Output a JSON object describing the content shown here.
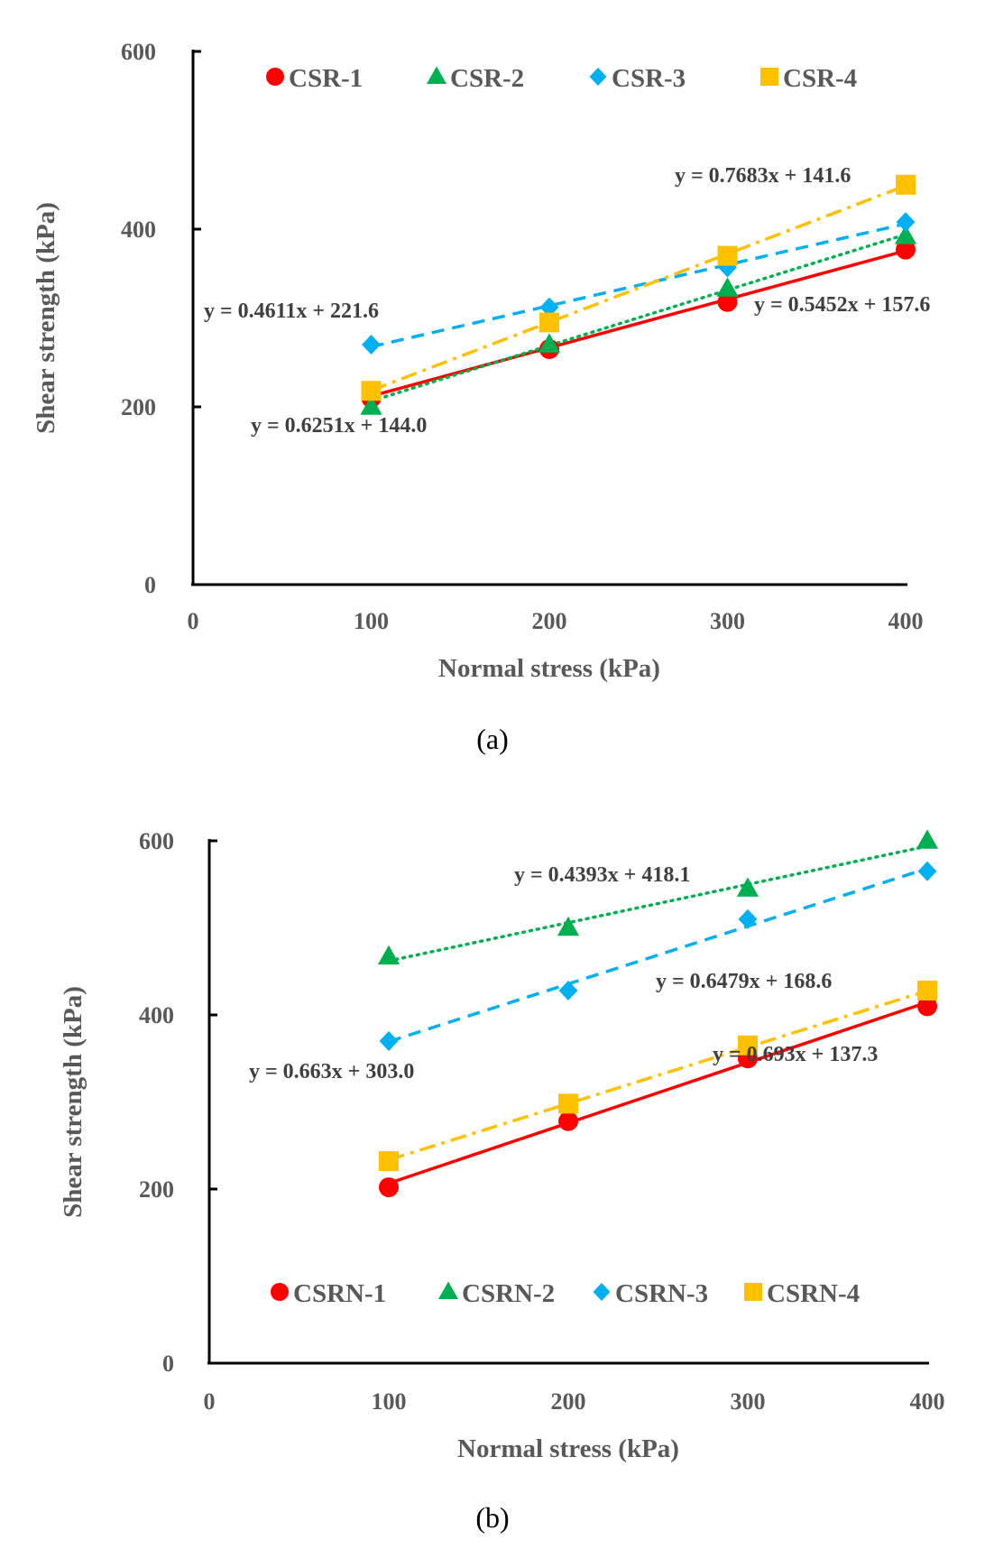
{
  "chart_data": [
    {
      "type": "scatter",
      "id": "a",
      "caption": "(a)",
      "xlabel": "Normal stress (kPa)",
      "ylabel": "Shear strength (kPa)",
      "xlim": [
        0,
        400
      ],
      "ylim": [
        0,
        600
      ],
      "xticks": [
        "0",
        "100",
        "200",
        "300",
        "400"
      ],
      "yticks": [
        "0",
        "200",
        "400",
        "600"
      ],
      "legend_position": "top",
      "series": [
        {
          "name": "CSR-1",
          "marker": "circle",
          "line": "solid",
          "color": "#FF0000",
          "x": [
            100,
            200,
            300,
            400
          ],
          "y": [
            210,
            265,
            318,
            377
          ],
          "slope": 0.5452,
          "intercept": 157.6,
          "equation": "y = 0.5452x + 157.6"
        },
        {
          "name": "CSR-2",
          "marker": "triangle",
          "line": "dotted",
          "color": "#00B050",
          "x": [
            100,
            200,
            300,
            400
          ],
          "y": [
            200,
            270,
            333,
            392
          ],
          "slope": 0.6251,
          "intercept": 144.0,
          "equation": "y = 0.6251x + 144.0"
        },
        {
          "name": "CSR-3",
          "marker": "diamond",
          "line": "dashed",
          "color": "#00B0F0",
          "x": [
            100,
            200,
            300,
            400
          ],
          "y": [
            270,
            312,
            357,
            408
          ],
          "slope": 0.4611,
          "intercept": 221.6,
          "equation": "y = 0.4611x + 221.6"
        },
        {
          "name": "CSR-4",
          "marker": "square",
          "line": "dashdot",
          "color": "#FFC000",
          "x": [
            100,
            200,
            300,
            400
          ],
          "y": [
            218,
            295,
            370,
            450
          ],
          "slope": 0.7683,
          "intercept": 141.6,
          "equation": "y = 0.7683x + 141.6"
        }
      ]
    },
    {
      "type": "scatter",
      "id": "b",
      "caption": "(b)",
      "xlabel": "Normal stress (kPa)",
      "ylabel": "Shear strength (kPa)",
      "xlim": [
        0,
        400
      ],
      "ylim": [
        0,
        600
      ],
      "xticks": [
        "0",
        "100",
        "200",
        "300",
        "400"
      ],
      "yticks": [
        "0",
        "200",
        "400",
        "600"
      ],
      "legend_position": "bottom",
      "series": [
        {
          "name": "CSRN-1",
          "marker": "circle",
          "line": "solid",
          "color": "#FF0000",
          "x": [
            100,
            200,
            300,
            400
          ],
          "y": [
            202,
            278,
            350,
            410
          ],
          "slope": 0.693,
          "intercept": 137.3,
          "equation": "y = 0.693x + 137.3"
        },
        {
          "name": "CSRN-2",
          "marker": "triangle",
          "line": "dotted",
          "color": "#00B050",
          "x": [
            100,
            200,
            300,
            400
          ],
          "y": [
            467,
            500,
            545,
            600
          ],
          "slope": 0.4393,
          "intercept": 418.1,
          "equation": "y = 0.4393x + 418.1"
        },
        {
          "name": "CSRN-3",
          "marker": "diamond",
          "line": "dashed",
          "color": "#00B0F0",
          "x": [
            100,
            200,
            300,
            400
          ],
          "y": [
            370,
            428,
            510,
            565
          ],
          "slope": 0.663,
          "intercept": 303.0,
          "equation": "y = 0.663x + 303.0"
        },
        {
          "name": "CSRN-4",
          "marker": "square",
          "line": "dashdot",
          "color": "#FFC000",
          "x": [
            100,
            200,
            300,
            400
          ],
          "y": [
            232,
            298,
            365,
            428
          ],
          "slope": 0.6479,
          "intercept": 168.6,
          "equation": "y = 0.6479x + 168.6"
        }
      ]
    }
  ]
}
